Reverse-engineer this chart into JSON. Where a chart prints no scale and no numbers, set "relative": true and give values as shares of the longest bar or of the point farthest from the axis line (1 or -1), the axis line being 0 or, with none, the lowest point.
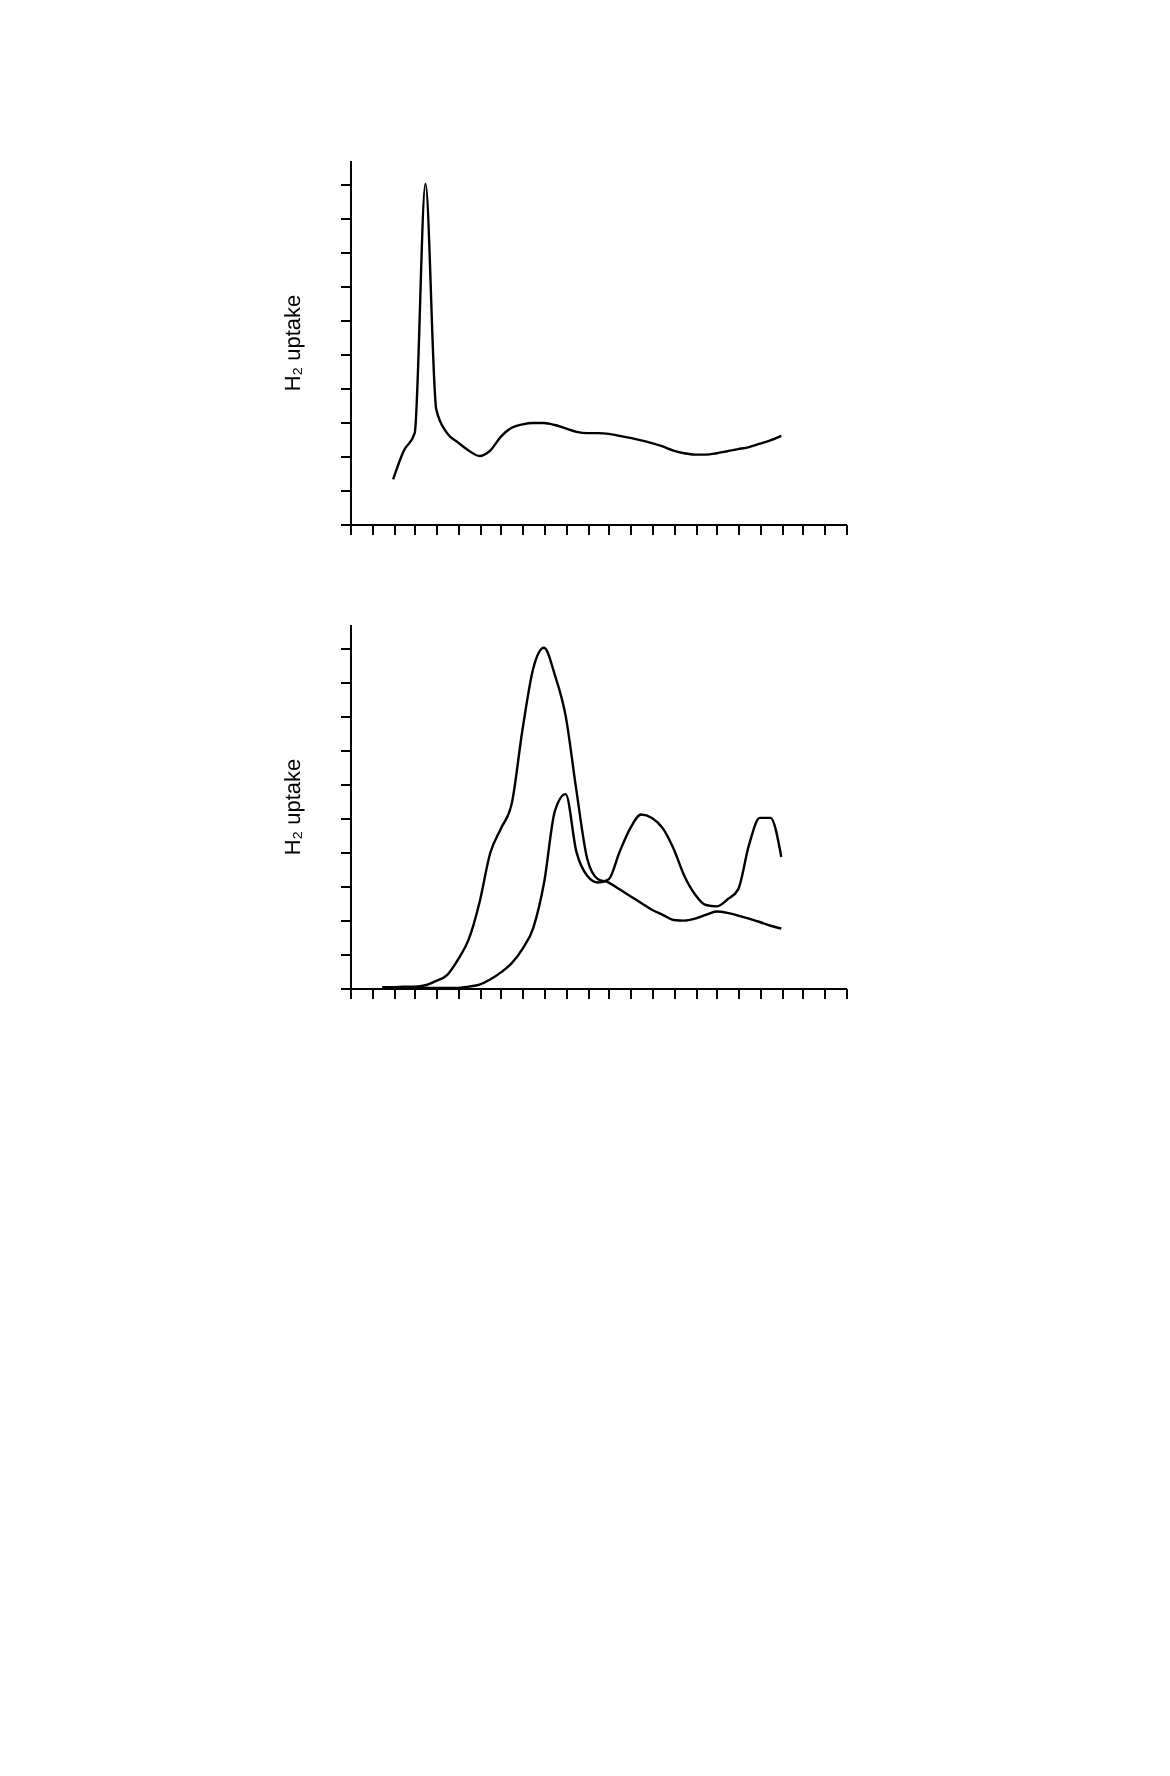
{
  "chart_data": [
    {
      "type": "line",
      "relative": true,
      "ylabel": "H₂ uptake",
      "categories": [
        null,
        null,
        null,
        null,
        null,
        null,
        null,
        null,
        null,
        null,
        null,
        null,
        null,
        null,
        null,
        null,
        null,
        null,
        null,
        null,
        null,
        null,
        null,
        null,
        null,
        null,
        null,
        null,
        null,
        null,
        null,
        null,
        null,
        null,
        null,
        null,
        null,
        null,
        null,
        null,
        null,
        null,
        null,
        null,
        null,
        null,
        null
      ],
      "series": [
        {
          "color": "#000000",
          "values": [
            null,
            null,
            null,
            null,
            0.131,
            0.216,
            0.267,
            1.0,
            0.337,
            0.267,
            0.24,
            0.216,
            0.2,
            0.216,
            0.257,
            0.283,
            0.293,
            0.297,
            0.297,
            0.291,
            0.281,
            0.271,
            0.267,
            0.267,
            0.265,
            0.259,
            0.253,
            0.246,
            0.238,
            0.228,
            0.216,
            0.208,
            0.204,
            0.204,
            0.208,
            0.214,
            0.22,
            0.226,
            0.236,
            0.246,
            0.259,
            null,
            null,
            null,
            null,
            null,
            null
          ]
        }
      ]
    },
    {
      "type": "line",
      "relative": true,
      "ylabel": "H₂ uptake",
      "categories": [
        null,
        null,
        null,
        null,
        null,
        null,
        null,
        null,
        null,
        null,
        null,
        null,
        null,
        null,
        null,
        null,
        null,
        null,
        null,
        null,
        null,
        null,
        null,
        null,
        null,
        null,
        null,
        null,
        null,
        null,
        null,
        null,
        null,
        null,
        null,
        null,
        null,
        null,
        null,
        null,
        null,
        null,
        null,
        null,
        null,
        null,
        null
      ],
      "series": [
        {
          "color": "#000000",
          "values": [
            null,
            null,
            null,
            0.002,
            0.002,
            0.004,
            0.004,
            0.008,
            0.021,
            0.038,
            0.083,
            0.142,
            0.25,
            0.396,
            0.469,
            0.542,
            0.76,
            0.94,
            1.0,
            0.92,
            0.8,
            0.58,
            0.38,
            0.32,
            0.31,
            0.29,
            0.27,
            0.25,
            0.23,
            0.215,
            0.2,
            0.198,
            0.204,
            0.215,
            0.225,
            0.221,
            0.213,
            0.204,
            0.194,
            0.183,
            0.175,
            null,
            null,
            null,
            null,
            null,
            null
          ]
        },
        {
          "color": "#000000",
          "values": [
            null,
            null,
            null,
            0.002,
            0.0,
            0.0,
            0.0,
            0.0,
            0.0,
            0.0,
            0.0,
            0.004,
            0.01,
            0.025,
            0.046,
            0.073,
            0.115,
            0.177,
            0.31,
            0.52,
            0.57,
            0.4,
            0.33,
            0.31,
            0.32,
            0.4,
            0.47,
            0.51,
            0.5,
            0.47,
            0.41,
            0.33,
            0.275,
            0.244,
            0.24,
            0.26,
            0.29,
            0.42,
            0.5,
            0.5,
            0.385,
            null,
            null,
            null,
            null,
            null,
            null
          ]
        }
      ]
    }
  ]
}
